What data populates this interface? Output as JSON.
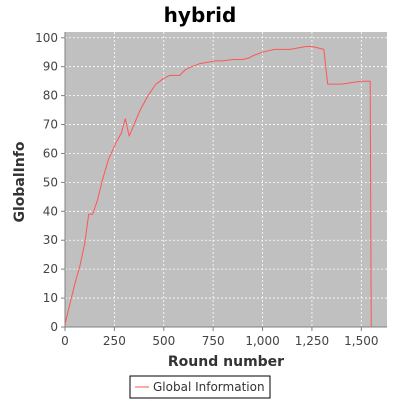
{
  "chart_data": {
    "type": "line",
    "title": "hybrid",
    "xlabel": "Round number",
    "ylabel": "GlobalInfo",
    "xlim": [
      0,
      1630
    ],
    "ylim": [
      0,
      102
    ],
    "x_ticks": [
      {
        "value": 0,
        "label": "0"
      },
      {
        "value": 250,
        "label": "250"
      },
      {
        "value": 500,
        "label": "500"
      },
      {
        "value": 750,
        "label": "750"
      },
      {
        "value": 1000,
        "label": "1,000"
      },
      {
        "value": 1250,
        "label": "1,250"
      },
      {
        "value": 1500,
        "label": "1,500"
      }
    ],
    "y_ticks": [
      {
        "value": 0,
        "label": "0"
      },
      {
        "value": 10,
        "label": "10"
      },
      {
        "value": 20,
        "label": "20"
      },
      {
        "value": 30,
        "label": "30"
      },
      {
        "value": 40,
        "label": "40"
      },
      {
        "value": 50,
        "label": "50"
      },
      {
        "value": 60,
        "label": "60"
      },
      {
        "value": 70,
        "label": "70"
      },
      {
        "value": 80,
        "label": "80"
      },
      {
        "value": 90,
        "label": "90"
      },
      {
        "value": 100,
        "label": "100"
      }
    ],
    "grid": true,
    "legend_position": "bottom-center",
    "plot_background": "#c0c0c0",
    "grid_color": "#ffffff",
    "series": [
      {
        "name": "Global Information",
        "color": "#ff5555",
        "x": [
          0,
          25,
          50,
          75,
          100,
          120,
          140,
          165,
          190,
          220,
          260,
          285,
          305,
          325,
          350,
          380,
          420,
          460,
          500,
          530,
          550,
          580,
          610,
          640,
          680,
          720,
          760,
          800,
          850,
          900,
          930,
          960,
          1000,
          1030,
          1060,
          1100,
          1140,
          1180,
          1220,
          1250,
          1280,
          1310,
          1330,
          1350,
          1400,
          1450,
          1500,
          1530,
          1545,
          1550
        ],
        "y": [
          1,
          8,
          15,
          21,
          29,
          39,
          39,
          44,
          51,
          58,
          64,
          67,
          72,
          66,
          70,
          75,
          80,
          84,
          86,
          87,
          87,
          87,
          89,
          90,
          91,
          91.5,
          92,
          92,
          92.5,
          92.5,
          93,
          94,
          95,
          95.5,
          96,
          96,
          96,
          96.5,
          97,
          97,
          96.5,
          96,
          84,
          84,
          84,
          84.5,
          85,
          85,
          85,
          0
        ]
      }
    ]
  }
}
